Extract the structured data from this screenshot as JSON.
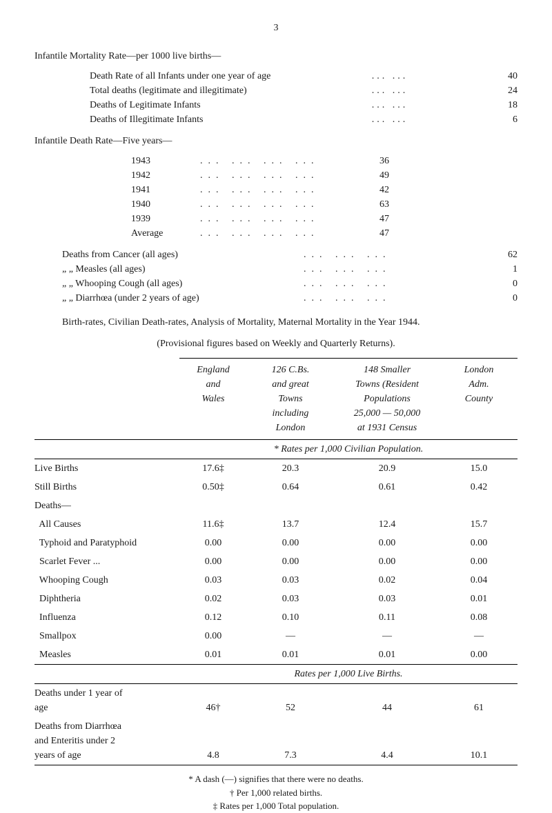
{
  "page_number": "3",
  "mortality_rate": {
    "title": "Infantile Mortality Rate—per 1000 live births—",
    "rows": [
      {
        "label": "Death Rate of all Infants under one year of age",
        "value": "40"
      },
      {
        "label": "Total deaths (legitimate and illegitimate)",
        "value": "24"
      },
      {
        "label": "Deaths of Legitimate Infants",
        "value": "18"
      },
      {
        "label": "Deaths of Illegitimate Infants",
        "value": "6"
      }
    ]
  },
  "death_rate": {
    "title": "Infantile Death Rate—Five years—",
    "years": [
      {
        "year": "1943",
        "value": "36"
      },
      {
        "year": "1942",
        "value": "49"
      },
      {
        "year": "1941",
        "value": "42"
      },
      {
        "year": "1940",
        "value": "63"
      },
      {
        "year": "1939",
        "value": "47"
      },
      {
        "year": "Average",
        "value": "47"
      }
    ]
  },
  "deaths_from": {
    "rows": [
      {
        "label": "Deaths from Cancer (all ages)",
        "value": "62"
      },
      {
        "label": "„    „  Measles (all ages)",
        "value": "1"
      },
      {
        "label": "„    „  Whooping Cough (all ages)",
        "value": "0"
      },
      {
        "label": "„    „  Diarrhœa (under 2 years of age)",
        "value": "0"
      }
    ]
  },
  "birth_rates_para": "Birth-rates, Civilian Death-rates, Analysis of Mortality, Maternal Mortality in the Year 1944.",
  "provisional_caption": "(Provisional figures based on Weekly and Quarterly Returns).",
  "table": {
    "headers": {
      "col1": "",
      "col2": "England\nand\nWales",
      "col3": "126 C.Bs.\nand great\nTowns\nincluding\nLondon",
      "col4": "148 Smaller\nTowns (Resident\nPopulations\n25,000 — 50,000\nat 1931 Census",
      "col5": "London\nAdm.\nCounty"
    },
    "rates_caption_1": "* Rates per 1,000 Civilian Population.",
    "data_rows_1": [
      {
        "label": "Live Births",
        "c2": "17.6‡",
        "c3": "20.3",
        "c4": "20.9",
        "c5": "15.0"
      },
      {
        "label": "Still Births",
        "c2": "0.50‡",
        "c3": "0.64",
        "c4": "0.61",
        "c5": "0.42"
      },
      {
        "label": "Deaths—",
        "c2": "",
        "c3": "",
        "c4": "",
        "c5": ""
      },
      {
        "label": "  All Causes",
        "c2": "11.6‡",
        "c3": "13.7",
        "c4": "12.4",
        "c5": "15.7"
      },
      {
        "label": "  Typhoid and Paratyphoid",
        "c2": "0.00",
        "c3": "0.00",
        "c4": "0.00",
        "c5": "0.00"
      },
      {
        "label": "  Scarlet Fever ...",
        "c2": "0.00",
        "c3": "0.00",
        "c4": "0.00",
        "c5": "0.00"
      },
      {
        "label": "  Whooping Cough",
        "c2": "0.03",
        "c3": "0.03",
        "c4": "0.02",
        "c5": "0.04"
      },
      {
        "label": "  Diphtheria",
        "c2": "0.02",
        "c3": "0.03",
        "c4": "0.03",
        "c5": "0.01"
      },
      {
        "label": "  Influenza",
        "c2": "0.12",
        "c3": "0.10",
        "c4": "0.11",
        "c5": "0.08"
      },
      {
        "label": "  Smallpox",
        "c2": "0.00",
        "c3": "—",
        "c4": "—",
        "c5": "—"
      },
      {
        "label": "  Measles",
        "c2": "0.01",
        "c3": "0.01",
        "c4": "0.01",
        "c5": "0.00"
      }
    ],
    "rates_caption_2": "Rates per 1,000 Live Births.",
    "data_rows_2": [
      {
        "label": "  Deaths under 1 year of\n    age",
        "c2": "46†",
        "c3": "52",
        "c4": "44",
        "c5": "61"
      },
      {
        "label": "  Deaths from Diarrhœa\n    and Enteritis under 2\n    years of age",
        "c2": "4.8",
        "c3": "7.3",
        "c4": "4.4",
        "c5": "10.1"
      }
    ]
  },
  "footnotes": {
    "f1": "* A dash (—) signifies that there were no deaths.",
    "f2": "† Per 1,000 related births.",
    "f3": "‡ Rates per 1,000 Total population."
  }
}
